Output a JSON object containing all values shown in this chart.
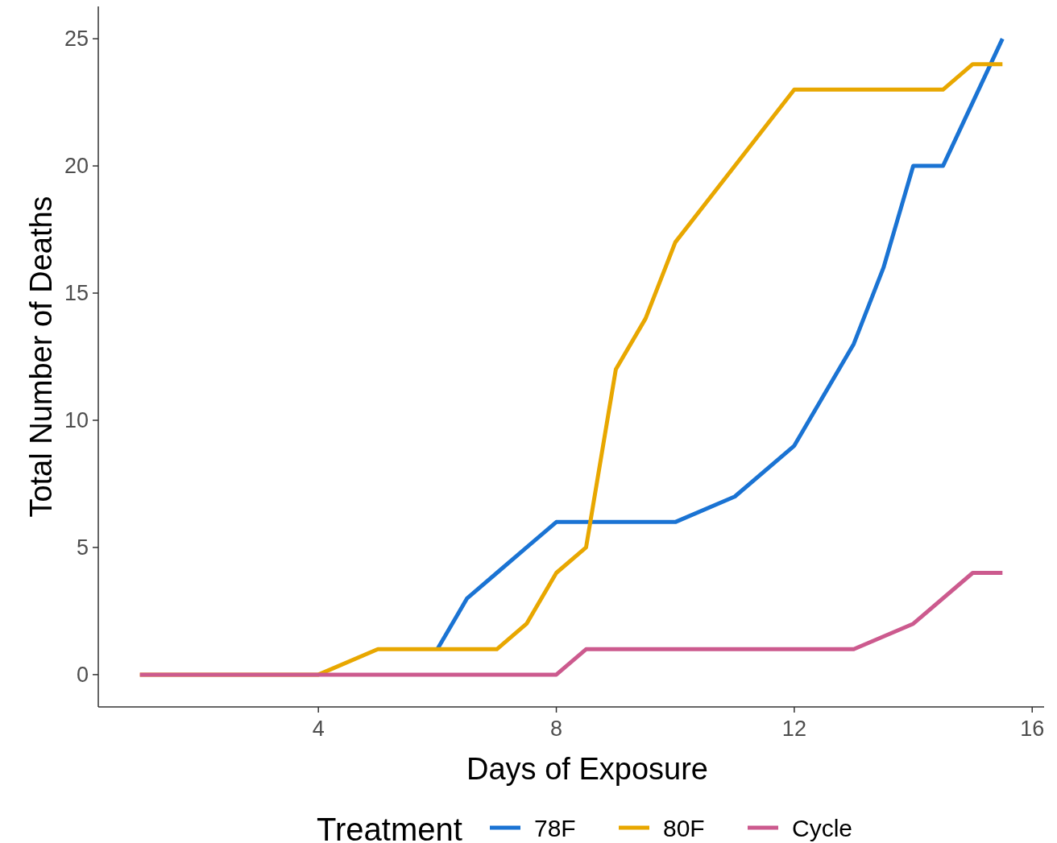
{
  "chart_data": {
    "type": "line",
    "xlabel": "Days of Exposure",
    "ylabel": "Total Number of Deaths",
    "legend_title": "Treatment",
    "legend": "bottom",
    "grid": false,
    "xlim": [
      0.3,
      16.2
    ],
    "ylim": [
      -1.27,
      26.27
    ],
    "xticks": [
      4,
      8,
      12,
      16
    ],
    "yticks": [
      0,
      5,
      10,
      15,
      20,
      25
    ],
    "series": [
      {
        "name": "78F",
        "color": "#1a73d3",
        "x": [
          6,
          6.5,
          7,
          7.5,
          8,
          10,
          11,
          12,
          13,
          13.5,
          14,
          14.5,
          15.5
        ],
        "values": [
          1,
          3,
          4,
          5,
          6,
          6,
          7,
          9,
          13,
          16,
          20,
          20,
          25
        ]
      },
      {
        "name": "80F",
        "color": "#e8a700",
        "x": [
          1,
          4,
          5,
          7,
          7.5,
          8,
          8.5,
          9,
          9.5,
          10,
          12,
          14.5,
          15,
          15.5
        ],
        "values": [
          0,
          0,
          1,
          1,
          2,
          4,
          5,
          12,
          14,
          17,
          23,
          23,
          24,
          24
        ]
      },
      {
        "name": "Cycle",
        "color": "#cc5a8e",
        "x": [
          1,
          8,
          8.5,
          13,
          14,
          15,
          15.5
        ],
        "values": [
          0,
          0,
          1,
          1,
          2,
          4,
          4
        ]
      }
    ]
  }
}
